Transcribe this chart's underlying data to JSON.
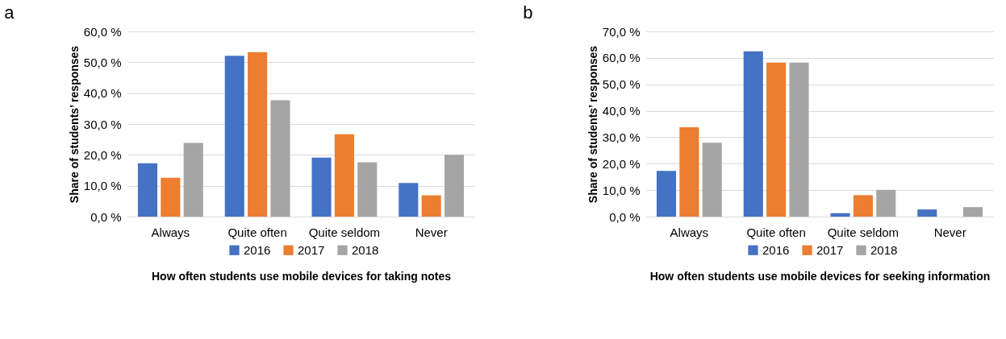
{
  "chart_data": [
    {
      "type": "bar",
      "title": "a",
      "xlabel": "How often students use mobile devices for taking notes",
      "ylabel": "Share of students’ responses",
      "categories": [
        "Always",
        "Quite often",
        "Quite seldom",
        "Never"
      ],
      "series": [
        {
          "name": "2016",
          "color": "#4472c4",
          "values": [
            17.3,
            52.1,
            19.1,
            10.9
          ]
        },
        {
          "name": "2017",
          "color": "#ed7d31",
          "values": [
            12.6,
            53.3,
            26.7,
            6.9
          ]
        },
        {
          "name": "2018",
          "color": "#a5a5a5",
          "values": [
            23.9,
            37.7,
            17.6,
            20.0
          ]
        }
      ],
      "ylim": [
        0,
        60
      ],
      "yticks": [
        {
          "value": 0,
          "label": "0,0 %"
        },
        {
          "value": 10,
          "label": "10,0 %"
        },
        {
          "value": 20,
          "label": "20,0 %"
        },
        {
          "value": 30,
          "label": "30,0 %"
        },
        {
          "value": 40,
          "label": "40,0 %"
        },
        {
          "value": 50,
          "label": "50,0 %"
        },
        {
          "value": 60,
          "label": "60,0 %"
        }
      ],
      "grid": "y",
      "legend": "bottom"
    },
    {
      "type": "bar",
      "title": "b",
      "xlabel": "How often students use mobile devices for seeking information",
      "ylabel": "Share of students’ responses",
      "categories": [
        "Always",
        "Quite often",
        "Quite seldom",
        "Never"
      ],
      "series": [
        {
          "name": "2016",
          "color": "#4472c4",
          "values": [
            17.3,
            62.5,
            1.3,
            2.7
          ]
        },
        {
          "name": "2017",
          "color": "#ed7d31",
          "values": [
            33.8,
            58.2,
            8.1,
            0
          ]
        },
        {
          "name": "2018",
          "color": "#a5a5a5",
          "values": [
            27.9,
            58.2,
            10.1,
            3.6
          ]
        }
      ],
      "ylim": [
        0,
        70
      ],
      "yticks": [
        {
          "value": 0,
          "label": "0,0 %"
        },
        {
          "value": 10,
          "label": "10,0 %"
        },
        {
          "value": 20,
          "label": "20,0 %"
        },
        {
          "value": 30,
          "label": "30,0 %"
        },
        {
          "value": 40,
          "label": "40,0 %"
        },
        {
          "value": 50,
          "label": "50,0 %"
        },
        {
          "value": 60,
          "label": "60,0 %"
        },
        {
          "value": 70,
          "label": "70,0 %"
        }
      ],
      "grid": "y",
      "legend": "bottom"
    }
  ]
}
